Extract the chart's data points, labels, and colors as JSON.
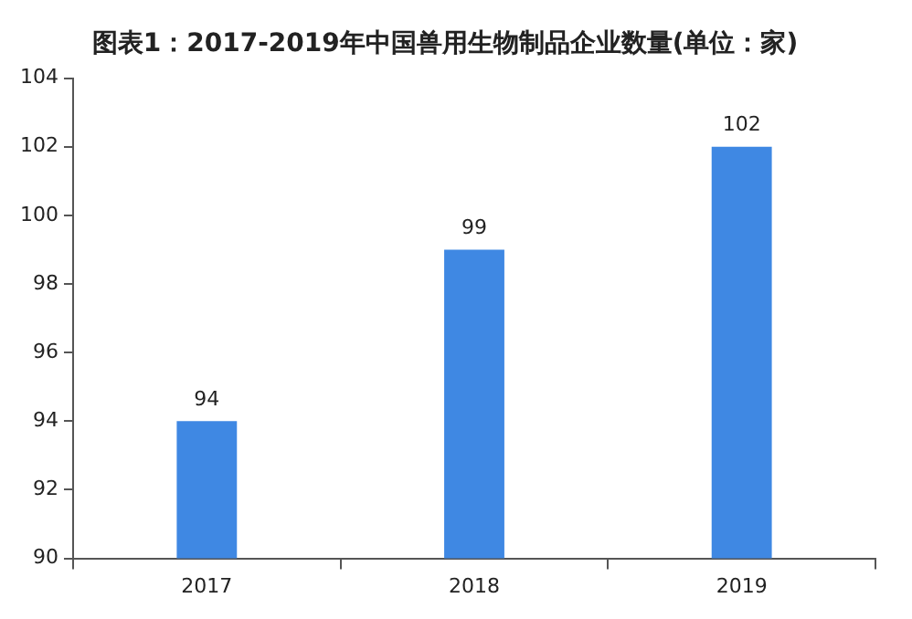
{
  "chart_data": {
    "type": "bar",
    "title": "图表1：2017-2019年中国兽用生物制品企业数量(单位：家)",
    "categories": [
      "2017",
      "2018",
      "2019"
    ],
    "values": [
      94,
      99,
      102
    ],
    "color": "#3f88e3",
    "ylim": [
      90,
      104
    ],
    "yticks": [
      90,
      92,
      94,
      96,
      98,
      100,
      102,
      104
    ],
    "grid": false,
    "data_labels": true
  }
}
